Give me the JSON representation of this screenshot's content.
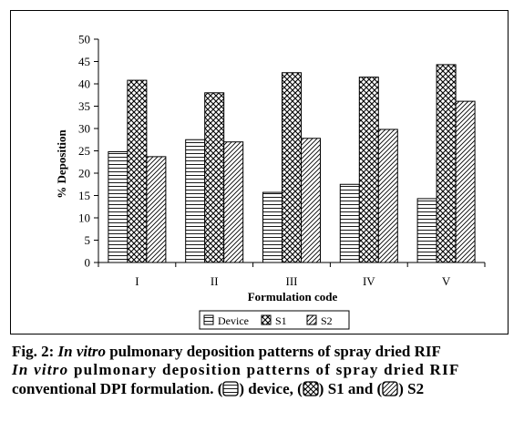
{
  "chart_data": {
    "type": "bar",
    "xlabel": "Formulation code",
    "ylabel": "% Deposition",
    "ylim": [
      0,
      50
    ],
    "yticks": [
      0,
      5,
      10,
      15,
      20,
      25,
      30,
      35,
      40,
      45,
      50
    ],
    "categories": [
      "I",
      "II",
      "III",
      "IV",
      "V"
    ],
    "series": [
      {
        "name": "Device",
        "pattern": "horizontal-lines",
        "values": [
          24.8,
          27.5,
          15.7,
          17.5,
          14.3
        ]
      },
      {
        "name": "S1",
        "pattern": "crosshatch",
        "values": [
          40.8,
          38.0,
          42.5,
          41.5,
          44.3
        ]
      },
      {
        "name": "S2",
        "pattern": "diagonal-lines",
        "values": [
          23.7,
          27.0,
          27.8,
          29.8,
          36.1
        ]
      }
    ],
    "grid": false,
    "legend_position": "bottom"
  },
  "caption": {
    "line1_prefix": "Fig. 2: ",
    "line1_italic": "In vitro",
    "line1_rest": " pulmonary deposition patterns of spray dried RIF",
    "line2_italic": "In vitro",
    "line2_rest": " pulmonary deposition patterns of spray dried RIF",
    "line3_start": "conventional DPI formulation. (",
    "line3_device": ") device, (",
    "line3_s1": ") S1 and (",
    "line3_s2": ") S2"
  }
}
